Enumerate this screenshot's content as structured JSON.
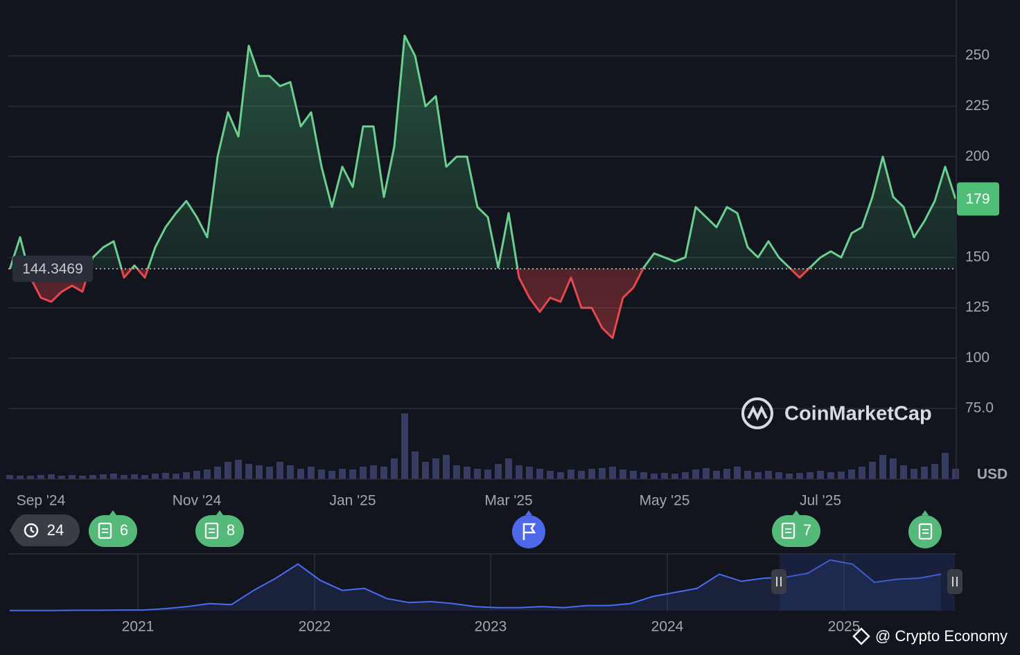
{
  "chart_data": {
    "type": "baseline-line",
    "currency": "USD",
    "baseline": 144.3469,
    "categories": [
      null,
      null,
      null,
      "Sep '24",
      null,
      null,
      null,
      null,
      null,
      null,
      null,
      null,
      null,
      null,
      null,
      null,
      null,
      null,
      "Nov '24",
      null,
      null,
      null,
      null,
      null,
      null,
      null,
      null,
      null,
      null,
      null,
      null,
      null,
      null,
      "Jan '25",
      null,
      null,
      null,
      null,
      null,
      null,
      null,
      null,
      null,
      null,
      null,
      null,
      null,
      null,
      "Mar '25",
      null,
      null,
      null,
      null,
      null,
      null,
      null,
      null,
      null,
      null,
      null,
      null,
      null,
      null,
      "May '25",
      null,
      null,
      null,
      null,
      null,
      null,
      null,
      null,
      null,
      null,
      null,
      null,
      null,
      null,
      "Jul '25",
      null,
      null,
      null,
      null,
      null,
      null,
      null,
      null,
      null,
      null,
      null,
      null,
      null
    ],
    "series": [
      {
        "name": "Price",
        "color_up": "#6bd08f",
        "color_down": "#e5484d",
        "values": [
          144,
          160,
          140,
          130,
          128,
          133,
          136,
          133,
          150,
          155,
          158,
          140,
          146,
          140,
          155,
          165,
          172,
          178,
          170,
          160,
          200,
          222,
          210,
          255,
          240,
          240,
          235,
          237,
          215,
          222,
          195,
          175,
          195,
          185,
          215,
          215,
          180,
          205,
          260,
          250,
          225,
          230,
          195,
          200,
          200,
          175,
          170,
          145,
          172,
          140,
          130,
          123,
          130,
          128,
          140,
          125,
          125,
          115,
          110,
          130,
          135,
          145,
          152,
          150,
          148,
          150,
          175,
          170,
          165,
          175,
          172,
          155,
          150,
          158,
          150,
          145,
          140,
          145,
          150,
          153,
          150,
          162,
          165,
          180,
          200,
          180,
          175,
          160,
          168,
          178,
          195,
          179
        ]
      }
    ],
    "volume": {
      "color": "#373d62",
      "lim": [
        0,
        100
      ],
      "values": [
        6,
        5,
        5,
        6,
        7,
        5,
        6,
        5,
        6,
        7,
        8,
        6,
        7,
        6,
        8,
        9,
        8,
        10,
        12,
        14,
        18,
        25,
        28,
        22,
        20,
        18,
        25,
        20,
        15,
        18,
        14,
        12,
        15,
        14,
        18,
        20,
        18,
        30,
        95,
        40,
        25,
        30,
        35,
        20,
        18,
        15,
        14,
        22,
        30,
        20,
        18,
        15,
        12,
        10,
        14,
        12,
        15,
        16,
        18,
        14,
        12,
        10,
        8,
        9,
        8,
        10,
        14,
        16,
        12,
        15,
        18,
        12,
        10,
        12,
        10,
        8,
        9,
        10,
        12,
        10,
        11,
        14,
        18,
        25,
        35,
        30,
        20,
        15,
        18,
        22,
        38,
        15
      ]
    },
    "ylim": [
      40,
      276
    ],
    "yticks": [
      {
        "value": 75,
        "label": "75.0"
      },
      100,
      125,
      150,
      175,
      200,
      225,
      250
    ],
    "grid": true,
    "events": [
      24,
      6,
      8,
      7
    ],
    "navigator": {
      "color": "#4a6cf0",
      "lim": [
        0,
        280
      ],
      "labels": [
        "2021",
        "2022",
        "2023",
        "2024",
        "2025"
      ],
      "values": [
        1,
        1,
        1,
        2,
        2,
        3,
        3,
        10,
        20,
        35,
        30,
        100,
        160,
        230,
        150,
        100,
        110,
        60,
        40,
        45,
        35,
        20,
        15,
        15,
        20,
        15,
        25,
        25,
        35,
        70,
        90,
        110,
        180,
        145,
        160,
        165,
        185,
        250,
        230,
        140,
        155,
        160,
        180
      ]
    },
    "watermark": "CoinMarketCap",
    "credit": "@ Crypto Economy"
  }
}
